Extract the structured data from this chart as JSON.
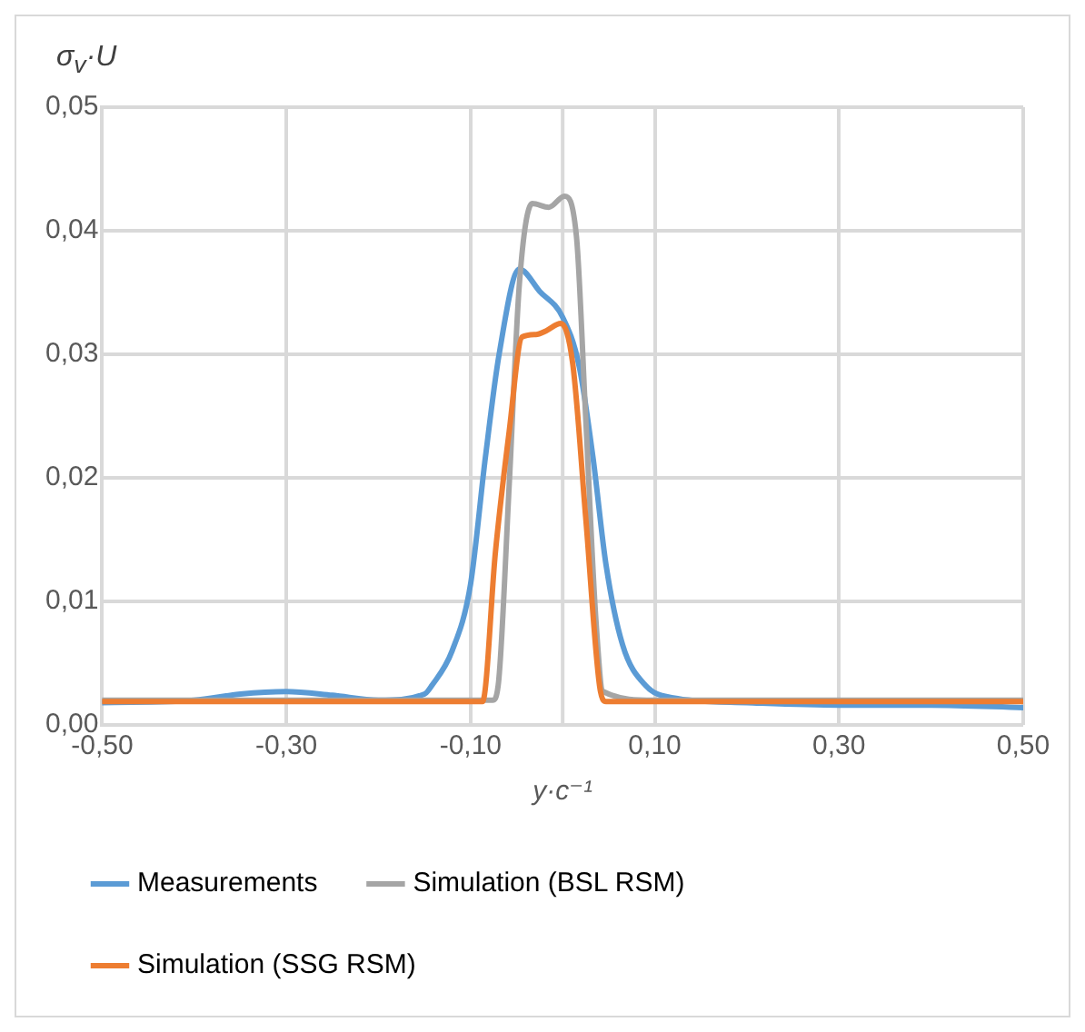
{
  "chart_data": {
    "type": "line",
    "xlabel": "y·c⁻¹",
    "ylabel": "σ$_{v}$·U",
    "xlim": [
      -0.5,
      0.5
    ],
    "ylim": [
      0,
      0.05
    ],
    "xticks": [
      {
        "value": -0.5,
        "label": "-0,50"
      },
      {
        "value": -0.3,
        "label": "-0,30"
      },
      {
        "value": -0.1,
        "label": "-0,10"
      },
      {
        "value": 0.1,
        "label": "0,10"
      },
      {
        "value": 0.3,
        "label": "0,30"
      },
      {
        "value": 0.5,
        "label": "0,50"
      }
    ],
    "yticks": [
      {
        "value": 0,
        "label": "0,00"
      },
      {
        "value": 0.01,
        "label": "0,01"
      },
      {
        "value": 0.02,
        "label": "0,02"
      },
      {
        "value": 0.03,
        "label": "0,03"
      },
      {
        "value": 0.04,
        "label": "0,04"
      },
      {
        "value": 0.05,
        "label": "0,05"
      }
    ],
    "grid": true,
    "legend": "bottom",
    "marker": "none",
    "line_style": "solid",
    "series": [
      {
        "name": "Measurements",
        "color": "#5b9bd5",
        "x": [
          -0.5,
          -0.4,
          -0.35,
          -0.3,
          -0.25,
          -0.2,
          -0.15,
          -0.142,
          -0.12,
          -0.1,
          -0.084,
          -0.069,
          -0.047,
          -0.025,
          0,
          0.018,
          0.033,
          0.047,
          0.065,
          0.09,
          0.12,
          0.2,
          0.3,
          0.4,
          0.5
        ],
        "values": [
          0.0018,
          0.002,
          0.0025,
          0.0027,
          0.0024,
          0.002,
          0.0025,
          0.0032,
          0.006,
          0.0114,
          0.0216,
          0.03,
          0.0369,
          0.0351,
          0.033,
          0.029,
          0.0216,
          0.013,
          0.0065,
          0.0032,
          0.0022,
          0.0018,
          0.0016,
          0.0016,
          0.0014
        ]
      },
      {
        "name": "Simulation (BSL RSM)",
        "color": "#a5a5a5",
        "x": [
          -0.5,
          -0.2,
          -0.076,
          -0.07,
          -0.058,
          -0.047,
          -0.033,
          -0.015,
          0.002,
          0.015,
          0.025,
          0.036,
          0.044,
          0.1,
          0.3,
          0.5
        ],
        "values": [
          0.002,
          0.002,
          0.002,
          0.0032,
          0.0195,
          0.0357,
          0.0422,
          0.0419,
          0.0428,
          0.0395,
          0.0249,
          0.0086,
          0.0027,
          0.002,
          0.002,
          0.002
        ]
      },
      {
        "name": "Simulation (SSG RSM)",
        "color": "#ed7d31",
        "x": [
          -0.5,
          -0.2,
          -0.087,
          -0.073,
          -0.058,
          -0.044,
          -0.029,
          -0.018,
          -0.002,
          0.011,
          0.025,
          0.04,
          0.047,
          0.1,
          0.3,
          0.5
        ],
        "values": [
          0.0019,
          0.0019,
          0.0019,
          0.014,
          0.0238,
          0.0314,
          0.0316,
          0.0319,
          0.0325,
          0.0292,
          0.0168,
          0.0032,
          0.0019,
          0.0019,
          0.0019,
          0.0019
        ]
      }
    ]
  }
}
